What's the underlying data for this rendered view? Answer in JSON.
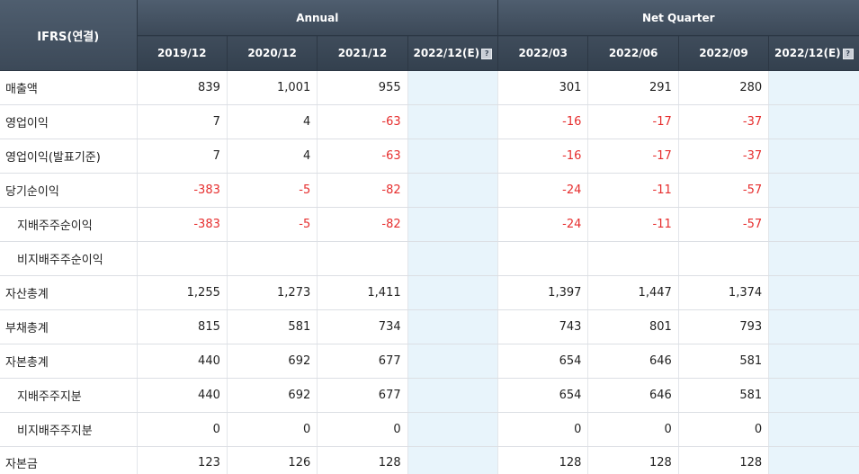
{
  "header": {
    "corner_label": "IFRS(연결)",
    "group_annual": "Annual",
    "group_quarter": "Net Quarter",
    "periods": [
      "2019/12",
      "2020/12",
      "2021/12",
      "2022/12(E)",
      "2022/03",
      "2022/06",
      "2022/09",
      "2022/12(E)"
    ],
    "help_glyph": "?",
    "help_icon": "help-icon"
  },
  "colors": {
    "header_bg": "#4f5e6f",
    "estimate_bg": "#e8f4fb",
    "negative_text": "#e62e2e"
  },
  "rows": [
    {
      "label": "매출액",
      "sub": false,
      "values": [
        "839",
        "1,001",
        "955",
        "",
        "301",
        "291",
        "280",
        ""
      ]
    },
    {
      "label": "영업이익",
      "sub": false,
      "values": [
        "7",
        "4",
        "-63",
        "",
        "-16",
        "-17",
        "-37",
        ""
      ]
    },
    {
      "label": "영업이익(발표기준)",
      "sub": false,
      "values": [
        "7",
        "4",
        "-63",
        "",
        "-16",
        "-17",
        "-37",
        ""
      ]
    },
    {
      "label": "당기순이익",
      "sub": false,
      "values": [
        "-383",
        "-5",
        "-82",
        "",
        "-24",
        "-11",
        "-57",
        ""
      ]
    },
    {
      "label": "지배주주순이익",
      "sub": true,
      "values": [
        "-383",
        "-5",
        "-82",
        "",
        "-24",
        "-11",
        "-57",
        ""
      ]
    },
    {
      "label": "비지배주주순이익",
      "sub": true,
      "values": [
        "",
        "",
        "",
        "",
        "",
        "",
        "",
        ""
      ]
    },
    {
      "label": "자산총계",
      "sub": false,
      "values": [
        "1,255",
        "1,273",
        "1,411",
        "",
        "1,397",
        "1,447",
        "1,374",
        ""
      ]
    },
    {
      "label": "부채총계",
      "sub": false,
      "values": [
        "815",
        "581",
        "734",
        "",
        "743",
        "801",
        "793",
        ""
      ]
    },
    {
      "label": "자본총계",
      "sub": false,
      "values": [
        "440",
        "692",
        "677",
        "",
        "654",
        "646",
        "581",
        ""
      ]
    },
    {
      "label": "지배주주지분",
      "sub": true,
      "values": [
        "440",
        "692",
        "677",
        "",
        "654",
        "646",
        "581",
        ""
      ]
    },
    {
      "label": "비지배주주지분",
      "sub": true,
      "values": [
        "0",
        "0",
        "0",
        "",
        "0",
        "0",
        "0",
        ""
      ]
    },
    {
      "label": "자본금",
      "sub": false,
      "values": [
        "123",
        "126",
        "128",
        "",
        "128",
        "128",
        "128",
        ""
      ]
    }
  ]
}
